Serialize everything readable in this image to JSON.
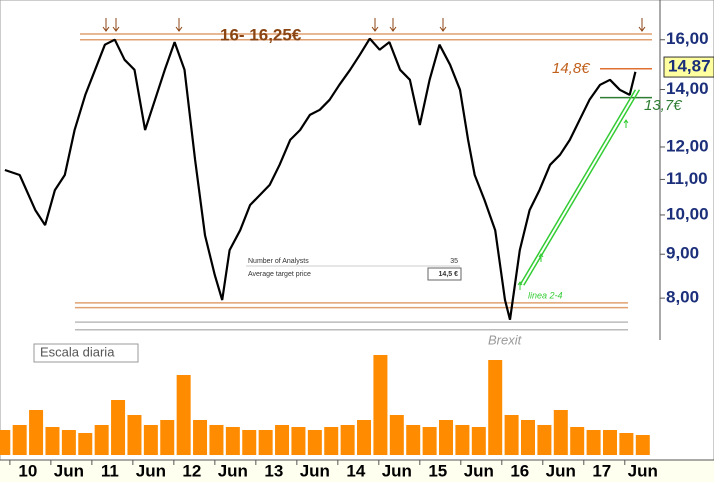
{
  "chart_data": {
    "type": "line",
    "ylim": [
      7.15,
      17.8
    ],
    "log_scale": true,
    "yticks": [
      {
        "value": 16,
        "label": "16,00"
      },
      {
        "value": 14,
        "label": "14,00"
      },
      {
        "value": 12,
        "label": "12,00"
      },
      {
        "value": 11,
        "label": "11,00"
      },
      {
        "value": 10,
        "label": "10,00"
      },
      {
        "value": 9,
        "label": "9,00"
      },
      {
        "value": 8,
        "label": "8,00"
      }
    ],
    "xlim": [
      9.66,
      17.71
    ],
    "xticks": [
      10,
      {
        "value": 10.5,
        "label": "Jun"
      },
      11,
      {
        "value": 11.5,
        "label": "Jun"
      },
      12,
      {
        "value": 12.5,
        "label": "Jun"
      },
      13,
      {
        "value": 13.5,
        "label": "Jun"
      },
      14,
      {
        "value": 14.5,
        "label": "Jun"
      },
      15,
      {
        "value": 15.5,
        "label": "Jun"
      },
      16,
      {
        "value": 16.5,
        "label": "Jun"
      },
      17,
      {
        "value": 17.5,
        "label": "Jun"
      }
    ],
    "last_price": {
      "value": 14.87,
      "label": "14,87"
    },
    "series": [
      {
        "color": "#000000",
        "x": [
          9.72,
          9.9,
          10.09,
          10.21,
          10.33,
          10.45,
          10.57,
          10.7,
          10.82,
          10.94,
          11.06,
          11.18,
          11.3,
          11.43,
          11.55,
          11.67,
          11.79,
          11.91,
          12.04,
          12.16,
          12.28,
          12.37,
          12.46,
          12.59,
          12.71,
          12.83,
          12.95,
          13.07,
          13.2,
          13.32,
          13.44,
          13.56,
          13.68,
          13.8,
          13.93,
          14.05,
          14.17,
          14.29,
          14.41,
          14.54,
          14.66,
          14.78,
          14.9,
          15.02,
          15.15,
          15.27,
          15.37,
          15.45,
          15.57,
          15.7,
          15.82,
          15.88,
          16.0,
          16.12,
          16.24,
          16.37,
          16.49,
          16.61,
          16.73,
          16.85,
          16.98,
          17.1,
          17.22,
          17.34,
          17.41
        ],
        "values": [
          11.28,
          11.13,
          10.13,
          9.73,
          10.69,
          11.13,
          12.56,
          13.8,
          14.76,
          15.79,
          16.0,
          15.16,
          14.76,
          12.56,
          13.62,
          14.76,
          15.9,
          14.76,
          11.59,
          9.47,
          8.51,
          7.96,
          9.1,
          9.6,
          10.27,
          10.55,
          10.84,
          11.44,
          12.23,
          12.56,
          13.08,
          13.26,
          13.62,
          14.18,
          14.76,
          15.37,
          16.05,
          15.58,
          15.9,
          14.76,
          14.37,
          12.73,
          14.37,
          15.79,
          14.96,
          13.99,
          12.23,
          11.13,
          10.41,
          9.6,
          7.96,
          7.55,
          9.1,
          10.13,
          10.69,
          11.44,
          11.75,
          12.23,
          12.91,
          13.62,
          14.18,
          14.37,
          13.99,
          13.8,
          14.68
        ]
      }
    ],
    "volume": {
      "color": "#ff8c00",
      "y2lim": [
        0,
        100
      ],
      "x": [
        9.7,
        9.9,
        10.1,
        10.3,
        10.5,
        10.7,
        10.9,
        11.1,
        11.3,
        11.5,
        11.7,
        11.9,
        12.1,
        12.3,
        12.5,
        12.7,
        12.9,
        13.1,
        13.3,
        13.5,
        13.7,
        13.9,
        14.1,
        14.3,
        14.5,
        14.7,
        14.9,
        15.1,
        15.3,
        15.5,
        15.7,
        15.9,
        16.1,
        16.3,
        16.5,
        16.7,
        16.9,
        17.1,
        17.3,
        17.5
      ],
      "values": [
        25,
        30,
        45,
        28,
        25,
        22,
        30,
        55,
        40,
        30,
        35,
        80,
        35,
        30,
        28,
        25,
        25,
        30,
        28,
        25,
        28,
        30,
        35,
        100,
        40,
        30,
        28,
        35,
        30,
        28,
        95,
        40,
        35,
        30,
        45,
        28,
        25,
        25,
        22,
        20
      ]
    },
    "hlines": [
      {
        "value": 16.25,
        "color": "#e0a070"
      },
      {
        "value": 16.0,
        "color": "#e0a070"
      },
      {
        "value": 14.8,
        "color": "#e07030"
      },
      {
        "value": 13.7,
        "color": "#2e7d32"
      },
      {
        "value": 7.9,
        "color": "#e0a070"
      },
      {
        "value": 7.8,
        "color": "#e0a070"
      },
      {
        "value": 7.5,
        "color": "#bbbbbb"
      },
      {
        "value": 7.35,
        "color": "#bbbbbb"
      }
    ],
    "trendline": {
      "color": "#33cc33",
      "x": [
        16.0,
        17.41
      ],
      "values": [
        8.28,
        13.99
      ]
    },
    "annotations": [
      "16- 16,25€",
      "14,8€",
      "13,7€",
      "linea 2-4",
      "Brexit",
      "Escala diaria"
    ],
    "table": {
      "rows": [
        [
          "Number of Analysts",
          "35"
        ],
        [
          "Average target price",
          "14,5 €"
        ]
      ]
    }
  }
}
